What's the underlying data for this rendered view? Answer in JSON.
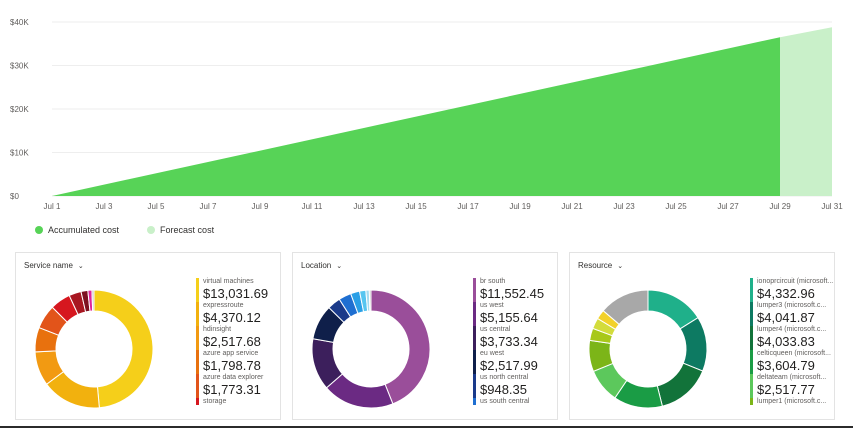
{
  "colors": {
    "accumulated": "#57d357",
    "forecast": "#c9f0c9",
    "grid": "#eeeeee",
    "axis_text": "#605e5c"
  },
  "chart_data": [
    {
      "type": "area",
      "title": "",
      "y_ticks": [
        "$0",
        "$10K",
        "$20K",
        "$30K",
        "$40K"
      ],
      "ylim": [
        0,
        40000
      ],
      "x_ticks": [
        "Jul 1",
        "Jul 3",
        "Jul 5",
        "Jul 7",
        "Jul 9",
        "Jul 11",
        "Jul 13",
        "Jul 15",
        "Jul 17",
        "Jul 19",
        "Jul 21",
        "Jul 23",
        "Jul 25",
        "Jul 27",
        "Jul 29",
        "Jul 31"
      ],
      "series": [
        {
          "name": "Accumulated cost",
          "x": [
            1,
            29
          ],
          "values": [
            0,
            36500
          ]
        },
        {
          "name": "Forecast cost",
          "x": [
            29,
            31
          ],
          "values": [
            36500,
            38800
          ]
        }
      ],
      "legend": {
        "accumulated": "Accumulated cost",
        "forecast": "Forecast cost"
      }
    },
    {
      "type": "pie",
      "title": "Service name",
      "slices": [
        {
          "label": "virtual machines",
          "value": 13031.69,
          "display": "$13,031.69",
          "color": "#f5cf1a",
          "listed": true
        },
        {
          "label": "expressroute",
          "value": 4370.12,
          "display": "$4,370.12",
          "color": "#f2b10e",
          "listed": true
        },
        {
          "label": "hdinsight",
          "value": 2517.68,
          "display": "$2,517.68",
          "color": "#f29a12",
          "listed": true
        },
        {
          "label": "azure app service",
          "value": 1798.78,
          "display": "$1,798.78",
          "color": "#e8710e",
          "listed": true
        },
        {
          "label": "azure data explorer",
          "value": 1773.31,
          "display": "$1,773.31",
          "color": "#e2541a",
          "listed": true
        },
        {
          "label": "storage",
          "value": 1500,
          "display": "",
          "color": "#d6171f",
          "listed": true
        },
        {
          "label": "other-1",
          "value": 900,
          "display": "",
          "color": "#a81621",
          "listed": false
        },
        {
          "label": "other-2",
          "value": 500,
          "display": "",
          "color": "#7d1020",
          "listed": false
        },
        {
          "label": "other-3",
          "value": 300,
          "display": "",
          "color": "#e0249a",
          "listed": false
        },
        {
          "label": "other-4",
          "value": 150,
          "display": "",
          "color": "#c2c2c2",
          "listed": false
        }
      ]
    },
    {
      "type": "pie",
      "title": "Location",
      "slices": [
        {
          "label": "br south",
          "value": 11552.45,
          "display": "$11,552.45",
          "color": "#9a4e9a",
          "listed": true
        },
        {
          "label": "us west",
          "value": 5155.64,
          "display": "$5,155.64",
          "color": "#6b2a83",
          "listed": true
        },
        {
          "label": "us central",
          "value": 3733.34,
          "display": "$3,733.34",
          "color": "#3c1f5c",
          "listed": true
        },
        {
          "label": "eu west",
          "value": 2517.99,
          "display": "$2,517.99",
          "color": "#0f1f4a",
          "listed": true
        },
        {
          "label": "us north central",
          "value": 948.35,
          "display": "$948.35",
          "color": "#1a3a8a",
          "listed": true
        },
        {
          "label": "us south central",
          "value": 900,
          "display": "",
          "color": "#1f6fd1",
          "listed": true
        },
        {
          "label": "other-1",
          "value": 650,
          "display": "",
          "color": "#2a9fe6",
          "listed": false
        },
        {
          "label": "other-2",
          "value": 450,
          "display": "",
          "color": "#56c5f0",
          "listed": false
        },
        {
          "label": "other-3",
          "value": 250,
          "display": "",
          "color": "#a6dcf0",
          "listed": false
        },
        {
          "label": "other-4",
          "value": 120,
          "display": "",
          "color": "#c2c2c2",
          "listed": false
        }
      ]
    },
    {
      "type": "pie",
      "title": "Resource",
      "slices": [
        {
          "label": "ionoprcircuit (microsoft...",
          "value": 4332.96,
          "display": "$4,332.96",
          "color": "#1fb08a",
          "listed": true
        },
        {
          "label": "lumper3 (microsoft.c...",
          "value": 4041.87,
          "display": "$4,041.87",
          "color": "#0d7a62",
          "listed": true
        },
        {
          "label": "lumper4 (microsoft.c...",
          "value": 4033.83,
          "display": "$4,033.83",
          "color": "#12733a",
          "listed": true
        },
        {
          "label": "celticqueen (microsoft...",
          "value": 3604.79,
          "display": "$3,604.79",
          "color": "#1a9c45",
          "listed": true
        },
        {
          "label": "deltateam (microsoft...",
          "value": 2517.77,
          "display": "$2,517.77",
          "color": "#5cc85c",
          "listed": true
        },
        {
          "label": "lumper1 (microsoft.c...",
          "value": 2300,
          "display": "",
          "color": "#7cb518",
          "listed": true
        },
        {
          "label": "other-1",
          "value": 900,
          "display": "",
          "color": "#a8c81a",
          "listed": false
        },
        {
          "label": "other-2",
          "value": 800,
          "display": "",
          "color": "#d3dc3c",
          "listed": false
        },
        {
          "label": "other-3",
          "value": 700,
          "display": "",
          "color": "#f2d12a",
          "listed": false
        },
        {
          "label": "other-4",
          "value": 3700,
          "display": "",
          "color": "#a8a8a8",
          "listed": false
        }
      ]
    }
  ]
}
